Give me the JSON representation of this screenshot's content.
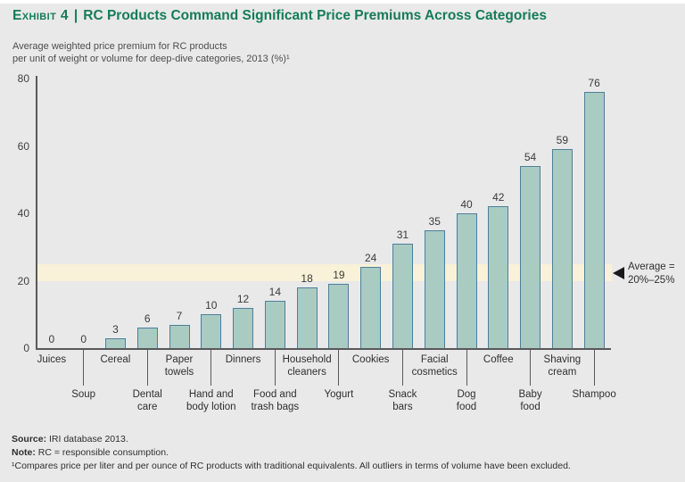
{
  "header": {
    "exhibit_label": "Exhibit 4",
    "separator": "|",
    "title": "RC Products Command Significant Price Premiums Across Categories"
  },
  "subtitle": {
    "line1": "Average weighted price premium for RC products",
    "line2": "per unit of weight or volume for deep-dive categories, 2013 (%)¹"
  },
  "chart_data": {
    "type": "bar",
    "categories": [
      "Juices",
      "Soup",
      "Cereal",
      "Dental care",
      "Paper towels",
      "Hand and body lotion",
      "Dinners",
      "Food and trash bags",
      "Household cleaners",
      "Yogurt",
      "Cookies",
      "Snack bars",
      "Facial cosmetics",
      "Dog food",
      "Coffee",
      "Baby food",
      "Shaving cream",
      "Shampoo"
    ],
    "values": [
      0,
      0,
      3,
      6,
      7,
      10,
      12,
      14,
      18,
      19,
      24,
      31,
      35,
      40,
      42,
      54,
      59,
      76
    ],
    "category_label_lines": [
      [
        "Juices"
      ],
      [
        "Soup"
      ],
      [
        "Cereal"
      ],
      [
        "Dental",
        "care"
      ],
      [
        "Paper",
        "towels"
      ],
      [
        "Hand and",
        "body lotion"
      ],
      [
        "Dinners"
      ],
      [
        "Food and",
        "trash bags"
      ],
      [
        "Household",
        "cleaners"
      ],
      [
        "Yogurt"
      ],
      [
        "Cookies"
      ],
      [
        "Snack",
        "bars"
      ],
      [
        "Facial",
        "cosmetics"
      ],
      [
        "Dog",
        "food"
      ],
      [
        "Coffee"
      ],
      [
        "Baby",
        "food"
      ],
      [
        "Shaving",
        "cream"
      ],
      [
        "Shampoo"
      ]
    ],
    "title": "RC Products Command Significant Price Premiums Across Categories",
    "xlabel": "",
    "ylabel": "Average weighted price premium for RC products per unit of weight or volume for deep-dive categories, 2013 (%)",
    "ylim": [
      0,
      80
    ],
    "y_ticks": [
      0,
      20,
      40,
      60,
      80
    ],
    "grid": "off",
    "average_band": {
      "from": 20,
      "to": 25,
      "label_line1": "Average =",
      "label_line2": "20%–25%"
    },
    "colors": {
      "bar_fill": "#aacbc2",
      "bar_border": "#4d7f9b",
      "band": "#f9f2d8",
      "axis": "#58595b",
      "title_green": "#157c59",
      "background": "#e9e9e9"
    }
  },
  "footer": {
    "source_label": "Source:",
    "source_text": " IRI database 2013.",
    "note_label": "Note:",
    "note_text": " RC = responsible consumption.",
    "footnote": "¹Compares price per liter and per ounce of RC products with traditional equivalents. All outliers in terms of volume have been excluded."
  }
}
